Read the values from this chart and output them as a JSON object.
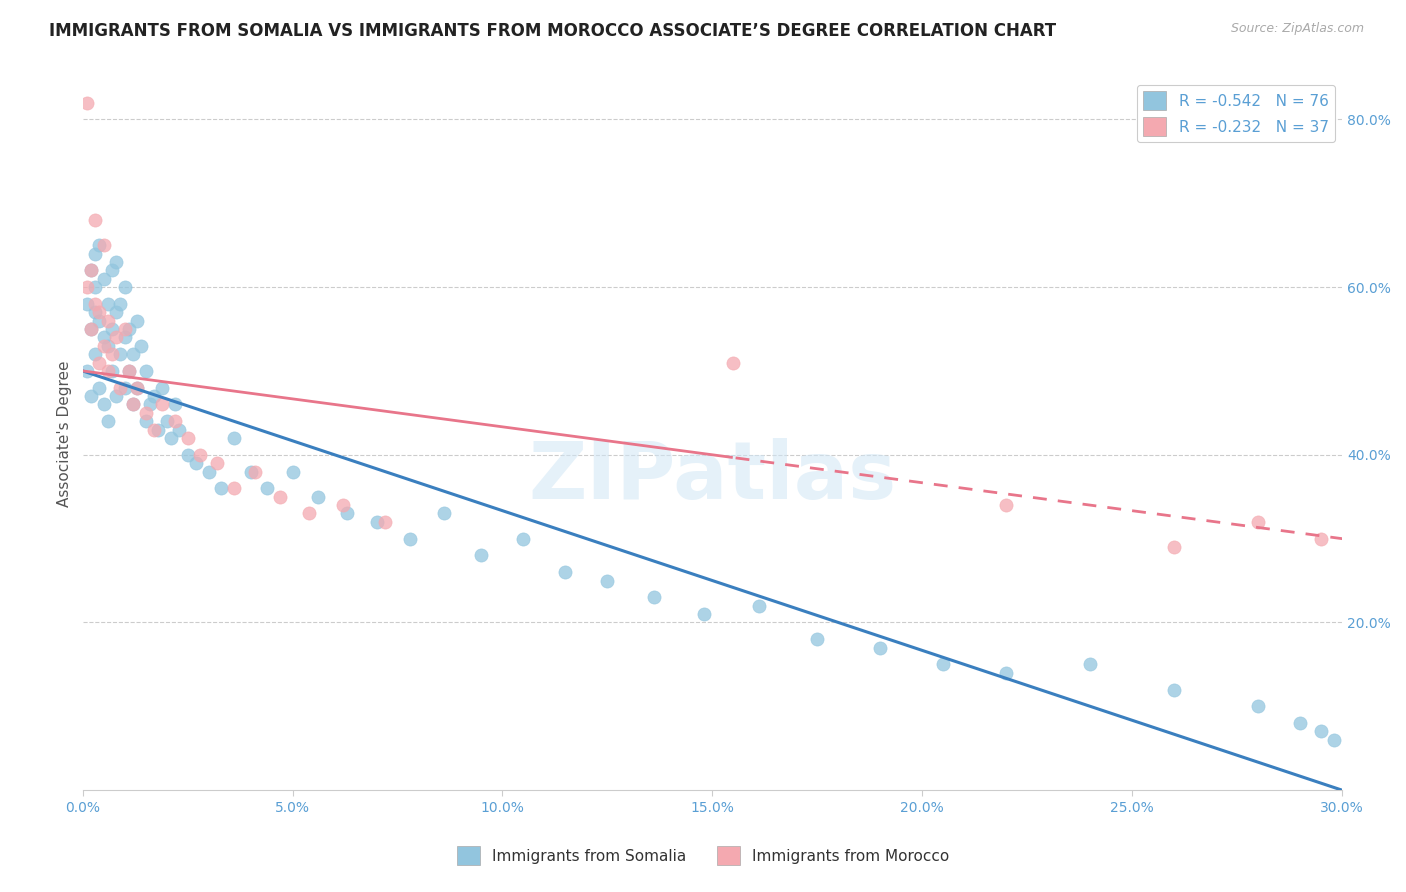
{
  "title": "IMMIGRANTS FROM SOMALIA VS IMMIGRANTS FROM MOROCCO ASSOCIATE’S DEGREE CORRELATION CHART",
  "source": "Source: ZipAtlas.com",
  "ylabel": "Associate's Degree",
  "xlim": [
    0.0,
    0.3
  ],
  "ylim": [
    0.0,
    0.85
  ],
  "xtick_labels": [
    "0.0%",
    "5.0%",
    "10.0%",
    "15.0%",
    "20.0%",
    "25.0%",
    "30.0%"
  ],
  "xtick_vals": [
    0.0,
    0.05,
    0.1,
    0.15,
    0.2,
    0.25,
    0.3
  ],
  "ytick_labels": [
    "20.0%",
    "40.0%",
    "60.0%",
    "80.0%"
  ],
  "ytick_vals": [
    0.2,
    0.4,
    0.6,
    0.8
  ],
  "somalia_color": "#92c5de",
  "morocco_color": "#f4a9b0",
  "somalia_line_color": "#3a7fbf",
  "morocco_line_color": "#e8758a",
  "legend_somalia_label": "R = -0.542   N = 76",
  "legend_morocco_label": "R = -0.232   N = 37",
  "watermark": "ZIPatlas",
  "somalia_scatter_x": [
    0.001,
    0.001,
    0.002,
    0.002,
    0.002,
    0.003,
    0.003,
    0.003,
    0.003,
    0.004,
    0.004,
    0.004,
    0.005,
    0.005,
    0.005,
    0.006,
    0.006,
    0.006,
    0.007,
    0.007,
    0.007,
    0.008,
    0.008,
    0.008,
    0.009,
    0.009,
    0.01,
    0.01,
    0.01,
    0.011,
    0.011,
    0.012,
    0.012,
    0.013,
    0.013,
    0.014,
    0.015,
    0.015,
    0.016,
    0.017,
    0.018,
    0.019,
    0.02,
    0.021,
    0.022,
    0.023,
    0.025,
    0.027,
    0.03,
    0.033,
    0.036,
    0.04,
    0.044,
    0.05,
    0.056,
    0.063,
    0.07,
    0.078,
    0.086,
    0.095,
    0.105,
    0.115,
    0.125,
    0.136,
    0.148,
    0.161,
    0.175,
    0.19,
    0.205,
    0.22,
    0.24,
    0.26,
    0.28,
    0.29,
    0.295,
    0.298
  ],
  "somalia_scatter_y": [
    0.5,
    0.58,
    0.55,
    0.62,
    0.47,
    0.64,
    0.57,
    0.52,
    0.6,
    0.56,
    0.48,
    0.65,
    0.54,
    0.46,
    0.61,
    0.53,
    0.58,
    0.44,
    0.5,
    0.62,
    0.55,
    0.47,
    0.57,
    0.63,
    0.52,
    0.58,
    0.54,
    0.6,
    0.48,
    0.55,
    0.5,
    0.52,
    0.46,
    0.56,
    0.48,
    0.53,
    0.5,
    0.44,
    0.46,
    0.47,
    0.43,
    0.48,
    0.44,
    0.42,
    0.46,
    0.43,
    0.4,
    0.39,
    0.38,
    0.36,
    0.42,
    0.38,
    0.36,
    0.38,
    0.35,
    0.33,
    0.32,
    0.3,
    0.33,
    0.28,
    0.3,
    0.26,
    0.25,
    0.23,
    0.21,
    0.22,
    0.18,
    0.17,
    0.15,
    0.14,
    0.15,
    0.12,
    0.1,
    0.08,
    0.07,
    0.06
  ],
  "morocco_scatter_x": [
    0.001,
    0.001,
    0.002,
    0.002,
    0.003,
    0.003,
    0.004,
    0.004,
    0.005,
    0.005,
    0.006,
    0.006,
    0.007,
    0.008,
    0.009,
    0.01,
    0.011,
    0.012,
    0.013,
    0.015,
    0.017,
    0.019,
    0.022,
    0.025,
    0.028,
    0.032,
    0.036,
    0.041,
    0.047,
    0.054,
    0.062,
    0.072,
    0.155,
    0.22,
    0.26,
    0.28,
    0.295
  ],
  "morocco_scatter_y": [
    0.82,
    0.6,
    0.62,
    0.55,
    0.68,
    0.58,
    0.57,
    0.51,
    0.65,
    0.53,
    0.56,
    0.5,
    0.52,
    0.54,
    0.48,
    0.55,
    0.5,
    0.46,
    0.48,
    0.45,
    0.43,
    0.46,
    0.44,
    0.42,
    0.4,
    0.39,
    0.36,
    0.38,
    0.35,
    0.33,
    0.34,
    0.32,
    0.51,
    0.34,
    0.29,
    0.32,
    0.3
  ],
  "background_color": "#ffffff",
  "grid_color": "#cccccc",
  "title_fontsize": 12,
  "axis_label_fontsize": 11,
  "tick_fontsize": 10,
  "tick_color": "#5a9fd4"
}
